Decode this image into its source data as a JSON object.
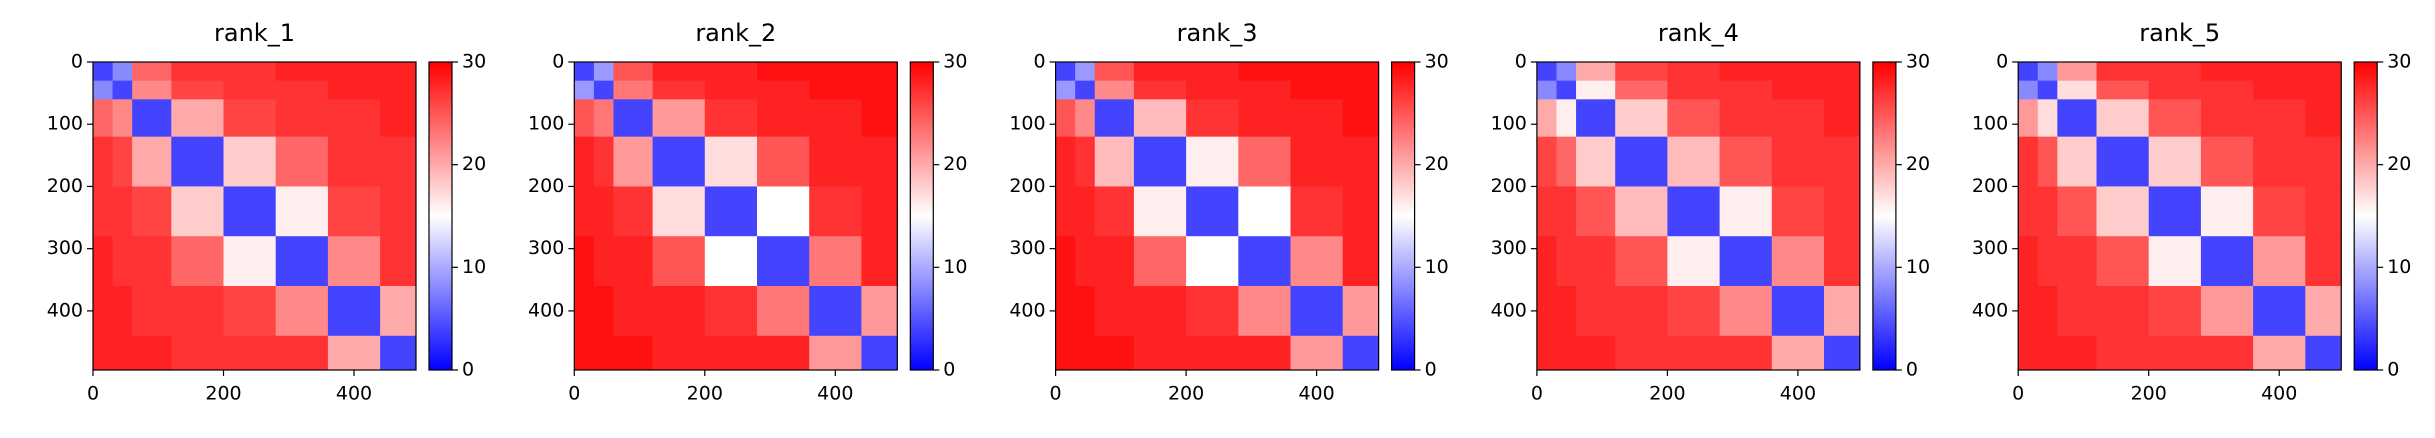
{
  "chart_data": [
    {
      "type": "heatmap",
      "title": "rank_1",
      "xbins": [
        0,
        30,
        60,
        120,
        200,
        280,
        360,
        440,
        495
      ],
      "ybins": [
        0,
        30,
        60,
        120,
        200,
        280,
        360,
        440,
        495
      ],
      "values": [
        [
          4,
          8,
          24,
          27,
          27,
          28,
          28,
          28
        ],
        [
          8,
          4,
          22,
          26,
          27,
          27,
          28,
          28
        ],
        [
          24,
          22,
          4,
          20,
          26,
          27,
          27,
          28
        ],
        [
          27,
          26,
          20,
          4,
          18,
          24,
          27,
          27
        ],
        [
          27,
          27,
          26,
          18,
          4,
          16,
          26,
          27
        ],
        [
          28,
          27,
          27,
          24,
          16,
          4,
          22,
          27
        ],
        [
          28,
          28,
          27,
          27,
          26,
          22,
          4,
          20
        ],
        [
          28,
          28,
          28,
          27,
          27,
          27,
          20,
          4
        ]
      ],
      "xlim": [
        0,
        495
      ],
      "ylim": [
        495,
        0
      ],
      "xticks": [
        0,
        200,
        400
      ],
      "yticks": [
        0,
        100,
        200,
        300,
        400
      ],
      "cmap": [
        "#0000ff",
        "#ffffff",
        "#ff0000"
      ],
      "clim": [
        0,
        30
      ],
      "cticks": [
        0,
        10,
        20,
        30
      ]
    },
    {
      "type": "heatmap",
      "title": "rank_2",
      "xbins": [
        0,
        30,
        60,
        120,
        200,
        280,
        360,
        440,
        495
      ],
      "ybins": [
        0,
        30,
        60,
        120,
        200,
        280,
        360,
        440,
        495
      ],
      "values": [
        [
          4,
          9,
          25,
          28,
          28,
          29,
          29,
          29
        ],
        [
          9,
          4,
          23,
          27,
          28,
          28,
          29,
          29
        ],
        [
          25,
          23,
          4,
          21,
          27,
          28,
          28,
          29
        ],
        [
          28,
          27,
          21,
          4,
          17,
          25,
          28,
          28
        ],
        [
          28,
          28,
          27,
          17,
          4,
          15,
          27,
          28
        ],
        [
          29,
          28,
          28,
          25,
          15,
          4,
          23,
          28
        ],
        [
          29,
          29,
          28,
          28,
          27,
          23,
          4,
          21
        ],
        [
          29,
          29,
          29,
          28,
          28,
          28,
          21,
          4
        ]
      ],
      "xlim": [
        0,
        495
      ],
      "ylim": [
        495,
        0
      ],
      "xticks": [
        0,
        200,
        400
      ],
      "yticks": [
        0,
        100,
        200,
        300,
        400
      ],
      "cmap": [
        "#0000ff",
        "#ffffff",
        "#ff0000"
      ],
      "clim": [
        0,
        30
      ],
      "cticks": [
        0,
        10,
        20,
        30
      ]
    },
    {
      "type": "heatmap",
      "title": "rank_3",
      "xbins": [
        0,
        30,
        60,
        120,
        200,
        280,
        360,
        440,
        495
      ],
      "ybins": [
        0,
        30,
        60,
        120,
        200,
        280,
        360,
        440,
        495
      ],
      "values": [
        [
          4,
          9,
          25,
          28,
          28,
          29,
          29,
          29
        ],
        [
          9,
          4,
          22,
          27,
          28,
          28,
          29,
          29
        ],
        [
          25,
          22,
          4,
          19,
          27,
          28,
          28,
          29
        ],
        [
          28,
          27,
          19,
          4,
          16,
          24,
          28,
          28
        ],
        [
          28,
          28,
          27,
          16,
          4,
          15,
          27,
          28
        ],
        [
          29,
          28,
          28,
          24,
          15,
          4,
          22,
          28
        ],
        [
          29,
          29,
          28,
          28,
          27,
          22,
          4,
          21
        ],
        [
          29,
          29,
          29,
          28,
          28,
          28,
          21,
          4
        ]
      ],
      "xlim": [
        0,
        495
      ],
      "ylim": [
        495,
        0
      ],
      "xticks": [
        0,
        200,
        400
      ],
      "yticks": [
        0,
        100,
        200,
        300,
        400
      ],
      "cmap": [
        "#0000ff",
        "#ffffff",
        "#ff0000"
      ],
      "clim": [
        0,
        30
      ],
      "cticks": [
        0,
        10,
        20,
        30
      ]
    },
    {
      "type": "heatmap",
      "title": "rank_4",
      "xbins": [
        0,
        30,
        60,
        120,
        200,
        280,
        360,
        440,
        495
      ],
      "ybins": [
        0,
        30,
        60,
        120,
        200,
        280,
        360,
        440,
        495
      ],
      "values": [
        [
          4,
          8,
          20,
          26,
          27,
          28,
          28,
          28
        ],
        [
          8,
          4,
          16,
          24,
          27,
          27,
          28,
          28
        ],
        [
          20,
          16,
          4,
          18,
          25,
          27,
          27,
          28
        ],
        [
          26,
          24,
          18,
          4,
          19,
          25,
          27,
          27
        ],
        [
          27,
          27,
          25,
          19,
          4,
          16,
          26,
          27
        ],
        [
          28,
          27,
          27,
          25,
          16,
          4,
          22,
          27
        ],
        [
          28,
          28,
          27,
          27,
          26,
          22,
          4,
          20
        ],
        [
          28,
          28,
          28,
          27,
          27,
          27,
          20,
          4
        ]
      ],
      "xlim": [
        0,
        495
      ],
      "ylim": [
        495,
        0
      ],
      "xticks": [
        0,
        200,
        400
      ],
      "yticks": [
        0,
        100,
        200,
        300,
        400
      ],
      "cmap": [
        "#0000ff",
        "#ffffff",
        "#ff0000"
      ],
      "clim": [
        0,
        30
      ],
      "cticks": [
        0,
        10,
        20,
        30
      ]
    },
    {
      "type": "heatmap",
      "title": "rank_5",
      "xbins": [
        0,
        30,
        60,
        120,
        200,
        280,
        360,
        440,
        495
      ],
      "ybins": [
        0,
        30,
        60,
        120,
        200,
        280,
        360,
        440,
        495
      ],
      "values": [
        [
          4,
          8,
          21,
          27,
          27,
          28,
          28,
          28
        ],
        [
          8,
          4,
          17,
          25,
          27,
          27,
          28,
          28
        ],
        [
          21,
          17,
          4,
          18,
          25,
          27,
          27,
          28
        ],
        [
          27,
          25,
          18,
          4,
          18,
          25,
          27,
          27
        ],
        [
          27,
          27,
          25,
          18,
          4,
          16,
          26,
          27
        ],
        [
          28,
          27,
          27,
          25,
          16,
          4,
          21,
          27
        ],
        [
          28,
          28,
          27,
          27,
          26,
          21,
          4,
          20
        ],
        [
          28,
          28,
          28,
          27,
          27,
          27,
          20,
          4
        ]
      ],
      "xlim": [
        0,
        495
      ],
      "ylim": [
        495,
        0
      ],
      "xticks": [
        0,
        200,
        400
      ],
      "yticks": [
        0,
        100,
        200,
        300,
        400
      ],
      "cmap": [
        "#0000ff",
        "#ffffff",
        "#ff0000"
      ],
      "clim": [
        0,
        30
      ],
      "cticks": [
        0,
        10,
        20,
        30
      ]
    }
  ]
}
